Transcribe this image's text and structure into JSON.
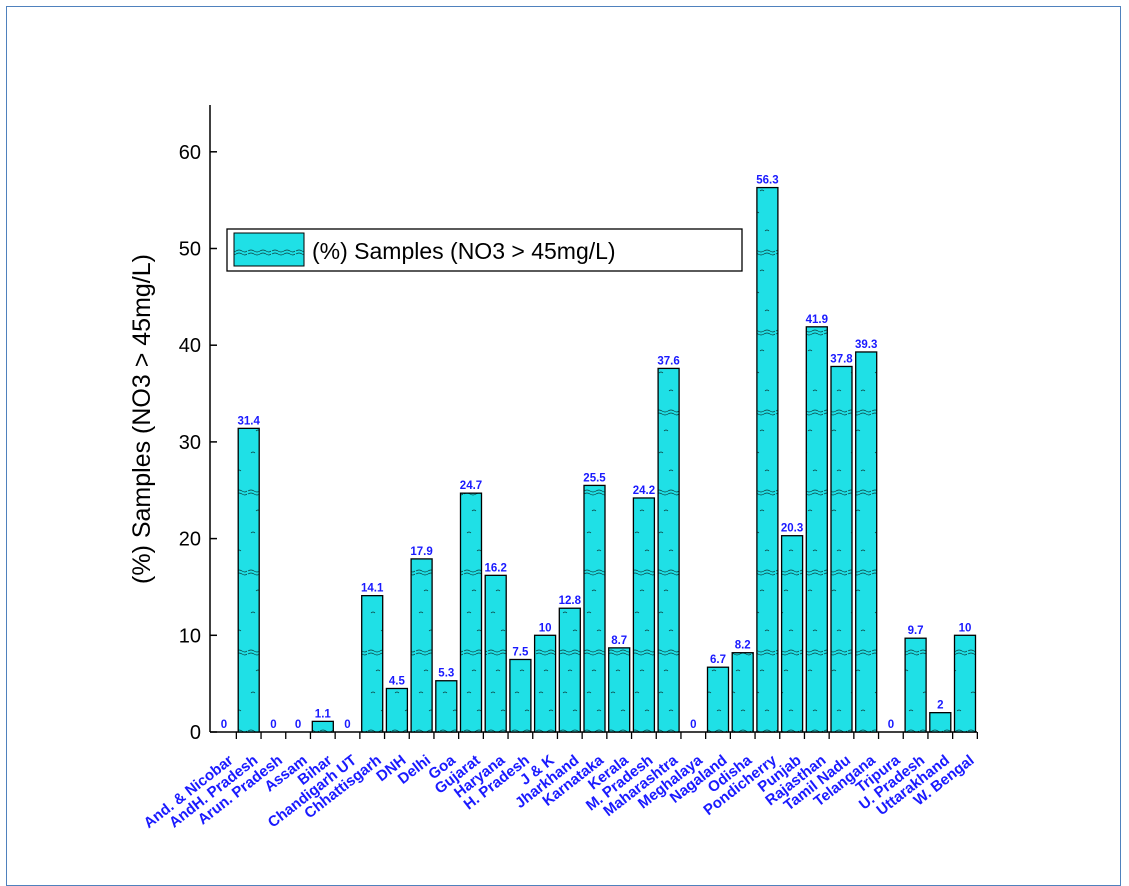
{
  "chart_data": {
    "type": "bar",
    "title": "",
    "xlabel": "",
    "ylabel": "(%) Samples (NO3 > 45mg/L)",
    "ylim": [
      0,
      65
    ],
    "yticks": [
      0,
      10,
      20,
      30,
      40,
      50,
      60
    ],
    "grid": false,
    "legend_position": "upper-left",
    "series": [
      {
        "name": "(%) Samples (NO3 > 45mg/L)",
        "color": "#1fe0e6",
        "values": [
          0,
          31.4,
          0,
          0,
          1.1,
          0,
          14.1,
          4.5,
          17.9,
          5.3,
          24.7,
          16.2,
          7.5,
          10,
          12.8,
          25.5,
          8.7,
          24.2,
          37.6,
          0,
          6.7,
          8.2,
          56.3,
          20.3,
          41.9,
          37.8,
          39.3,
          0,
          9.7,
          2,
          10
        ],
        "value_labels": [
          "0",
          "31.4",
          "0",
          "0",
          "1.1",
          "0",
          "14.1",
          "4.5",
          "17.9",
          "5.3",
          "24.7",
          "16.2",
          "7.5",
          "10",
          "12.8",
          "25.5",
          "8.7",
          "24.2",
          "37.6",
          "0",
          "6.7",
          "8.2",
          "56.3",
          "20.3",
          "41.9",
          "37.8",
          "39.3",
          "0",
          "9.7",
          "2",
          "10"
        ]
      }
    ],
    "categories": [
      "And. & Nicobar",
      "AndH. Pradesh",
      "Arun. Pradesh",
      "Assam",
      "Bihar",
      "Chandigarh UT",
      "Chhattisgarh",
      "DNH",
      "Delhi",
      "Goa",
      "Gujarat",
      "Haryana",
      "H. Pradesh",
      "J & K",
      "Jharkhand",
      "Karnataka",
      "Kerala",
      "M. Pradesh",
      "Maharashtra",
      "Meghalaya",
      "Nagaland",
      "Odisha",
      "Pondicherry",
      "Punjab",
      "Rajasthan",
      "Tamil Nadu",
      "Telangana",
      "Tripura",
      "U. Pradesh",
      "Uttarakhand",
      "W. Bengal"
    ],
    "label_color": "#1a1aff"
  }
}
